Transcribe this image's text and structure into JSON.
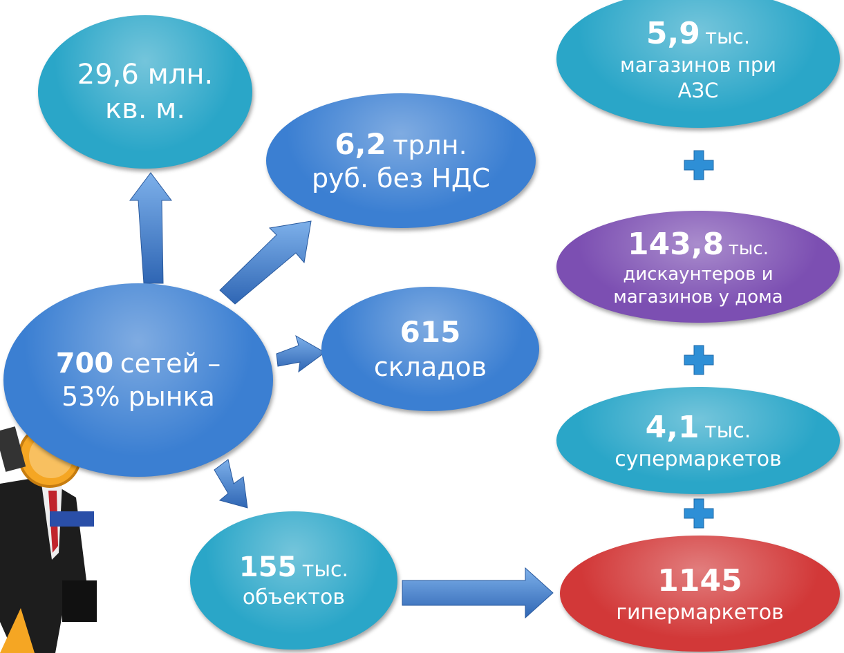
{
  "nodes": [
    {
      "lines": [
        [
          {
            "text": "29,6 млн.",
            "bold": false
          }
        ],
        [
          {
            "text": "кв. м.",
            "bold": false
          }
        ]
      ],
      "color": "#2aa6c8"
    },
    {
      "lines": [
        [
          {
            "text": "6,2",
            "bold": true
          },
          {
            "text": "трлн.",
            "bold": false
          }
        ],
        [
          {
            "text": "руб. без НДС",
            "bold": false
          }
        ]
      ],
      "color": "#3b7fd2"
    },
    {
      "lines": [
        [
          {
            "text": "615",
            "bold": true
          }
        ],
        [
          {
            "text": "складов",
            "bold": false
          }
        ]
      ],
      "color": "#3b7fd2"
    },
    {
      "lines": [
        [
          {
            "text": "700",
            "bold": true
          },
          {
            "text": "сетей –",
            "bold": false
          }
        ],
        [
          {
            "text": "53% рынка",
            "bold": false
          }
        ]
      ],
      "color": "#3b7fd2"
    },
    {
      "lines": [
        [
          {
            "text": "155",
            "bold": true
          },
          {
            "text": "тыс.",
            "bold": false
          }
        ],
        [
          {
            "text": "объектов",
            "bold": false
          }
        ]
      ],
      "color": "#2aa6c8"
    },
    {
      "lines": [
        [
          {
            "text": "5,9",
            "bold": true
          },
          {
            "text": "тыс.",
            "bold": false
          }
        ],
        [
          {
            "text": "магазинов при",
            "bold": false
          }
        ],
        [
          {
            "text": "АЗС",
            "bold": false
          }
        ]
      ],
      "color": "#2aa6c8"
    },
    {
      "lines": [
        [
          {
            "text": "143,8",
            "bold": true
          },
          {
            "text": "тыс.",
            "bold": false
          }
        ],
        [
          {
            "text": "дискаунтеров и",
            "bold": false
          }
        ],
        [
          {
            "text": "магазинов у дома",
            "bold": false
          }
        ]
      ],
      "color": "#7c4fb2"
    },
    {
      "lines": [
        [
          {
            "text": "4,1",
            "bold": true
          },
          {
            "text": "тыс.",
            "bold": false
          }
        ],
        [
          {
            "text": "супермаркетов",
            "bold": false
          }
        ]
      ],
      "color": "#2aa6c8"
    },
    {
      "lines": [
        [
          {
            "text": "1145",
            "bold": true
          }
        ],
        [
          {
            "text": "гипермаркетов",
            "bold": false
          }
        ]
      ],
      "color": "#d23838"
    }
  ]
}
